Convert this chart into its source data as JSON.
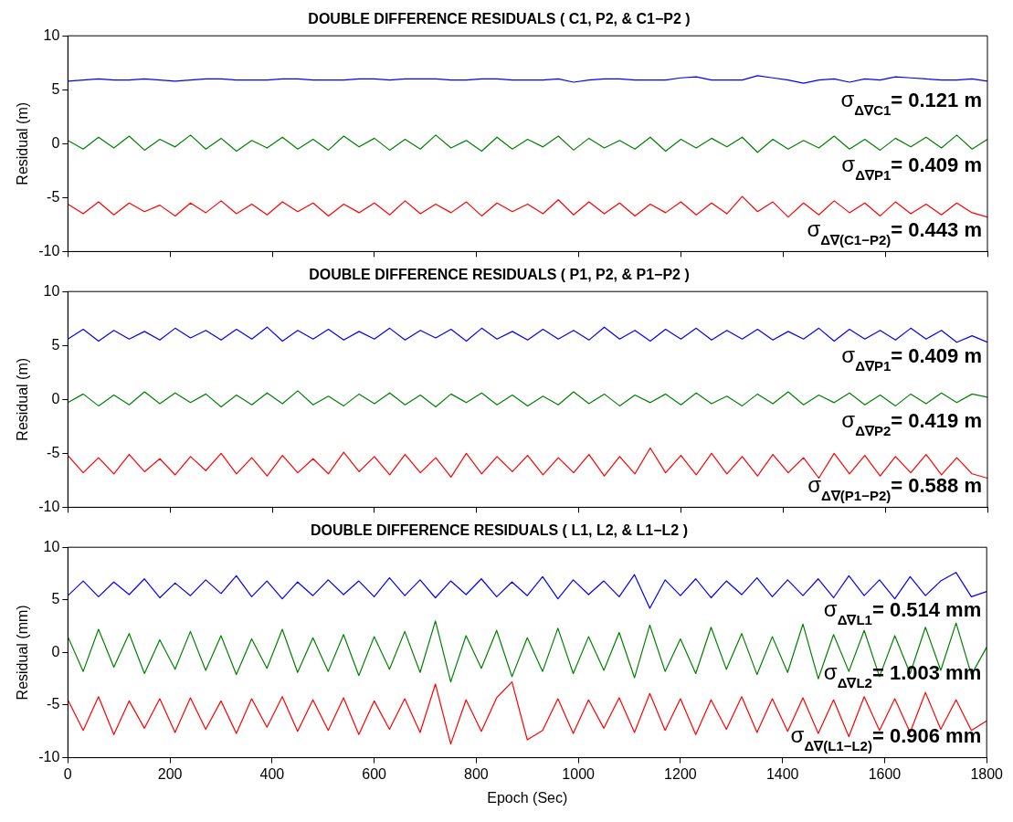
{
  "chart_data": [
    {
      "type": "line",
      "title": "DOUBLE DIFFERENCE RESIDUALS ( C1, P2, & C1−P2 )",
      "ylabel": "Residual (m)",
      "xlim": [
        0,
        1800
      ],
      "xticks": [
        0,
        200,
        400,
        600,
        800,
        1000,
        1200,
        1400,
        1600,
        1800
      ],
      "ylim": [
        -10,
        10
      ],
      "yticks": [
        -10,
        -5,
        0,
        5,
        10
      ],
      "tick_labels": "y",
      "grid": false,
      "legend": false,
      "marker": "none",
      "line_style": "solid",
      "x": [
        0,
        30,
        60,
        90,
        120,
        150,
        180,
        210,
        240,
        270,
        300,
        330,
        360,
        390,
        420,
        450,
        480,
        510,
        540,
        570,
        600,
        630,
        660,
        690,
        720,
        750,
        780,
        810,
        840,
        870,
        900,
        930,
        960,
        990,
        1020,
        1050,
        1080,
        1110,
        1140,
        1170,
        1200,
        1230,
        1260,
        1290,
        1320,
        1350,
        1380,
        1410,
        1440,
        1470,
        1500,
        1530,
        1560,
        1590,
        1620,
        1650,
        1680,
        1710,
        1740,
        1770,
        1800
      ],
      "annotations": [
        "σ$_{Δ∇C1}$= 0.121 m",
        "σ$_{Δ∇P1}$= 0.409 m",
        "σ$_{Δ∇(C1−P2)}$= 0.443 m"
      ],
      "series": [
        {
          "color": "#0000ff",
          "values": [
            5.8,
            5.9,
            6.0,
            5.9,
            5.9,
            6.0,
            5.9,
            5.8,
            5.9,
            6.0,
            6.0,
            5.9,
            5.9,
            5.9,
            6.0,
            6.0,
            5.9,
            5.9,
            5.9,
            6.0,
            6.0,
            5.9,
            6.0,
            6.0,
            6.0,
            5.9,
            5.9,
            6.0,
            6.0,
            5.9,
            5.9,
            5.9,
            6.0,
            5.7,
            5.9,
            6.0,
            6.0,
            5.9,
            5.9,
            5.9,
            6.1,
            6.2,
            5.9,
            5.9,
            5.9,
            6.3,
            6.1,
            5.9,
            5.6,
            5.9,
            6.0,
            5.7,
            6.0,
            5.9,
            6.2,
            6.1,
            6.0,
            5.9,
            5.9,
            6.0,
            5.8
          ]
        },
        {
          "color": "#008000",
          "values": [
            0.3,
            -0.5,
            0.6,
            -0.4,
            0.7,
            -0.6,
            0.4,
            -0.3,
            0.8,
            -0.5,
            0.5,
            -0.7,
            0.3,
            -0.4,
            0.6,
            -0.5,
            0.4,
            -0.6,
            0.7,
            -0.3,
            0.5,
            -0.6,
            0.4,
            -0.5,
            0.8,
            -0.4,
            0.3,
            -0.7,
            0.6,
            -0.5,
            0.4,
            -0.3,
            0.7,
            -0.6,
            0.5,
            -0.4,
            0.3,
            -0.5,
            0.6,
            -0.7,
            0.4,
            -0.4,
            0.5,
            -0.3,
            0.6,
            -0.8,
            0.4,
            -0.5,
            0.3,
            -0.4,
            0.7,
            -0.5,
            0.4,
            -0.6,
            0.5,
            -0.3,
            0.6,
            -0.4,
            0.8,
            -0.5,
            0.4
          ]
        },
        {
          "color": "#ff0000",
          "values": [
            -5.6,
            -6.5,
            -5.4,
            -6.6,
            -5.5,
            -6.3,
            -5.7,
            -6.7,
            -5.5,
            -6.4,
            -5.3,
            -6.5,
            -5.6,
            -6.6,
            -5.4,
            -6.3,
            -5.5,
            -6.7,
            -5.6,
            -6.4,
            -5.5,
            -6.6,
            -5.3,
            -6.5,
            -5.6,
            -6.4,
            -5.4,
            -6.7,
            -5.5,
            -6.3,
            -5.6,
            -6.5,
            -5.2,
            -6.6,
            -5.4,
            -6.5,
            -5.5,
            -6.7,
            -5.6,
            -6.4,
            -5.4,
            -6.6,
            -5.5,
            -6.5,
            -4.9,
            -6.3,
            -5.4,
            -6.8,
            -5.5,
            -6.6,
            -5.3,
            -6.4,
            -5.5,
            -6.7,
            -5.4,
            -6.5,
            -5.6,
            -6.6,
            -5.5,
            -6.4,
            -6.8
          ]
        }
      ]
    },
    {
      "type": "line",
      "title": "DOUBLE DIFFERENCE RESIDUALS ( P1, P2, & P1−P2 )",
      "ylabel": "Residual (m)",
      "xlim": [
        0,
        1800
      ],
      "xticks": [
        0,
        200,
        400,
        600,
        800,
        1000,
        1200,
        1400,
        1600,
        1800
      ],
      "ylim": [
        -10,
        10
      ],
      "yticks": [
        -10,
        -5,
        0,
        5,
        10
      ],
      "tick_labels": "y",
      "grid": false,
      "legend": false,
      "marker": "none",
      "line_style": "solid",
      "x": [
        0,
        30,
        60,
        90,
        120,
        150,
        180,
        210,
        240,
        270,
        300,
        330,
        360,
        390,
        420,
        450,
        480,
        510,
        540,
        570,
        600,
        630,
        660,
        690,
        720,
        750,
        780,
        810,
        840,
        870,
        900,
        930,
        960,
        990,
        1020,
        1050,
        1080,
        1110,
        1140,
        1170,
        1200,
        1230,
        1260,
        1290,
        1320,
        1350,
        1380,
        1410,
        1440,
        1470,
        1500,
        1530,
        1560,
        1590,
        1620,
        1650,
        1680,
        1710,
        1740,
        1770,
        1800
      ],
      "annotations": [
        "σ$_{Δ∇P1}$= 0.409 m",
        "σ$_{Δ∇P2}$= 0.419 m",
        "σ$_{Δ∇(P1−P2)}$= 0.588 m"
      ],
      "series": [
        {
          "color": "#0000ff",
          "values": [
            5.6,
            6.5,
            5.4,
            6.4,
            5.6,
            6.3,
            5.5,
            6.6,
            5.7,
            6.4,
            5.5,
            6.5,
            5.6,
            6.7,
            5.4,
            6.4,
            5.6,
            6.5,
            5.5,
            6.3,
            5.6,
            6.6,
            5.5,
            6.4,
            5.7,
            6.5,
            5.4,
            6.6,
            5.6,
            6.3,
            5.5,
            6.5,
            5.6,
            6.4,
            5.5,
            6.7,
            5.6,
            6.4,
            5.4,
            6.5,
            5.6,
            6.6,
            5.5,
            6.4,
            5.6,
            6.5,
            5.5,
            6.3,
            5.6,
            6.6,
            5.4,
            6.5,
            5.6,
            6.4,
            5.5,
            6.6,
            5.6,
            6.4,
            5.3,
            5.9,
            5.3
          ]
        },
        {
          "color": "#008000",
          "values": [
            -0.3,
            0.5,
            -0.6,
            0.4,
            -0.5,
            0.7,
            -0.4,
            0.6,
            -0.3,
            0.5,
            -0.7,
            0.4,
            -0.5,
            0.6,
            -0.4,
            0.8,
            -0.5,
            0.3,
            -0.6,
            0.5,
            -0.4,
            0.6,
            -0.5,
            0.4,
            -0.7,
            0.5,
            -0.3,
            0.6,
            -0.5,
            0.4,
            -0.6,
            0.3,
            -0.5,
            0.7,
            -0.4,
            0.5,
            -0.6,
            0.4,
            -0.3,
            0.5,
            -0.5,
            0.6,
            -0.4,
            0.3,
            -0.6,
            0.5,
            -0.4,
            0.7,
            -0.5,
            0.4,
            -0.3,
            0.6,
            -0.5,
            0.4,
            -0.6,
            0.5,
            -0.4,
            0.6,
            -0.3,
            0.5,
            0.2
          ]
        },
        {
          "color": "#ff0000",
          "values": [
            -5.2,
            -6.8,
            -5.4,
            -6.9,
            -5.1,
            -6.7,
            -5.5,
            -7.0,
            -5.3,
            -6.6,
            -5.0,
            -6.9,
            -5.4,
            -7.1,
            -5.2,
            -6.8,
            -5.5,
            -6.9,
            -4.9,
            -6.7,
            -5.3,
            -7.0,
            -5.1,
            -6.8,
            -5.4,
            -7.2,
            -5.0,
            -6.9,
            -5.3,
            -6.7,
            -5.2,
            -7.0,
            -5.4,
            -6.8,
            -5.1,
            -7.1,
            -5.3,
            -6.9,
            -4.5,
            -6.8,
            -5.2,
            -7.0,
            -5.0,
            -6.9,
            -5.3,
            -7.1,
            -5.1,
            -6.8,
            -5.4,
            -7.3,
            -5.0,
            -6.9,
            -5.2,
            -7.1,
            -5.3,
            -6.8,
            -5.1,
            -7.0,
            -5.4,
            -6.9,
            -7.3
          ]
        }
      ]
    },
    {
      "type": "line",
      "title": "DOUBLE DIFFERENCE RESIDUALS ( L1, L2, & L1−L2 )",
      "xlabel": "Epoch (Sec)",
      "ylabel": "Residual (mm)",
      "xlim": [
        0,
        1800
      ],
      "xticks": [
        0,
        200,
        400,
        600,
        800,
        1000,
        1200,
        1400,
        1600,
        1800
      ],
      "ylim": [
        -10,
        10
      ],
      "yticks": [
        -10,
        -5,
        0,
        5,
        10
      ],
      "grid": false,
      "legend": false,
      "marker": "none",
      "line_style": "solid",
      "x": [
        0,
        30,
        60,
        90,
        120,
        150,
        180,
        210,
        240,
        270,
        300,
        330,
        360,
        390,
        420,
        450,
        480,
        510,
        540,
        570,
        600,
        630,
        660,
        690,
        720,
        750,
        780,
        810,
        840,
        870,
        900,
        930,
        960,
        990,
        1020,
        1050,
        1080,
        1110,
        1140,
        1170,
        1200,
        1230,
        1260,
        1290,
        1320,
        1350,
        1380,
        1410,
        1440,
        1470,
        1500,
        1530,
        1560,
        1590,
        1620,
        1650,
        1680,
        1710,
        1740,
        1770,
        1800
      ],
      "annotations": [
        "σ$_{Δ∇L1}$= 0.514 mm",
        "σ$_{Δ∇L2}$= 1.003 mm",
        "σ$_{Δ∇(L1−L2)}$= 0.906 mm"
      ],
      "series": [
        {
          "color": "#0000ff",
          "values": [
            5.4,
            6.8,
            5.3,
            6.7,
            5.5,
            7.0,
            5.2,
            6.6,
            5.4,
            6.9,
            5.6,
            7.3,
            5.3,
            6.8,
            5.1,
            6.7,
            5.4,
            6.9,
            5.5,
            6.8,
            5.3,
            7.1,
            5.4,
            6.9,
            5.2,
            6.8,
            5.5,
            7.0,
            5.3,
            6.7,
            5.4,
            7.2,
            5.1,
            6.9,
            5.5,
            6.8,
            5.3,
            7.4,
            4.2,
            6.9,
            5.4,
            7.0,
            5.2,
            6.8,
            5.5,
            7.1,
            5.3,
            6.9,
            5.4,
            7.0,
            5.2,
            7.3,
            5.4,
            6.9,
            5.1,
            7.2,
            5.4,
            6.8,
            7.6,
            5.3,
            5.8
          ]
        },
        {
          "color": "#008000",
          "values": [
            1.5,
            -1.8,
            2.2,
            -1.4,
            1.8,
            -2.0,
            1.2,
            -1.6,
            2.0,
            -1.7,
            1.6,
            -2.1,
            1.3,
            -1.5,
            2.2,
            -1.9,
            1.4,
            -1.8,
            1.7,
            -2.2,
            1.5,
            -1.6,
            2.0,
            -1.9,
            3.0,
            -2.8,
            1.6,
            -1.5,
            2.1,
            -2.3,
            1.4,
            -1.8,
            2.3,
            -2.0,
            1.5,
            -1.7,
            1.9,
            -2.4,
            2.6,
            -1.8,
            1.3,
            -2.0,
            2.4,
            -1.6,
            1.8,
            -2.1,
            1.5,
            -1.9,
            2.7,
            -2.5,
            1.7,
            -1.8,
            2.1,
            -2.3,
            1.6,
            -2.0,
            2.4,
            -1.7,
            2.8,
            -2.1,
            0.5
          ]
        },
        {
          "color": "#ff0000",
          "values": [
            -4.5,
            -7.4,
            -4.2,
            -7.8,
            -4.6,
            -7.2,
            -4.4,
            -7.6,
            -4.3,
            -7.3,
            -4.6,
            -7.7,
            -4.4,
            -7.1,
            -4.2,
            -7.5,
            -4.5,
            -7.4,
            -4.3,
            -7.8,
            -4.6,
            -7.3,
            -4.4,
            -7.6,
            -3.0,
            -8.7,
            -4.5,
            -7.5,
            -4.3,
            -2.8,
            -8.3,
            -7.4,
            -4.4,
            -7.7,
            -4.5,
            -7.2,
            -4.3,
            -7.6,
            -3.9,
            -7.4,
            -4.4,
            -7.8,
            -4.5,
            -7.3,
            -4.2,
            -7.6,
            -4.4,
            -7.5,
            -4.3,
            -7.7,
            -4.5,
            -8.0,
            -4.2,
            -7.4,
            -4.4,
            -7.6,
            -3.8,
            -7.3,
            -4.5,
            -7.4,
            -6.5
          ]
        }
      ]
    }
  ]
}
